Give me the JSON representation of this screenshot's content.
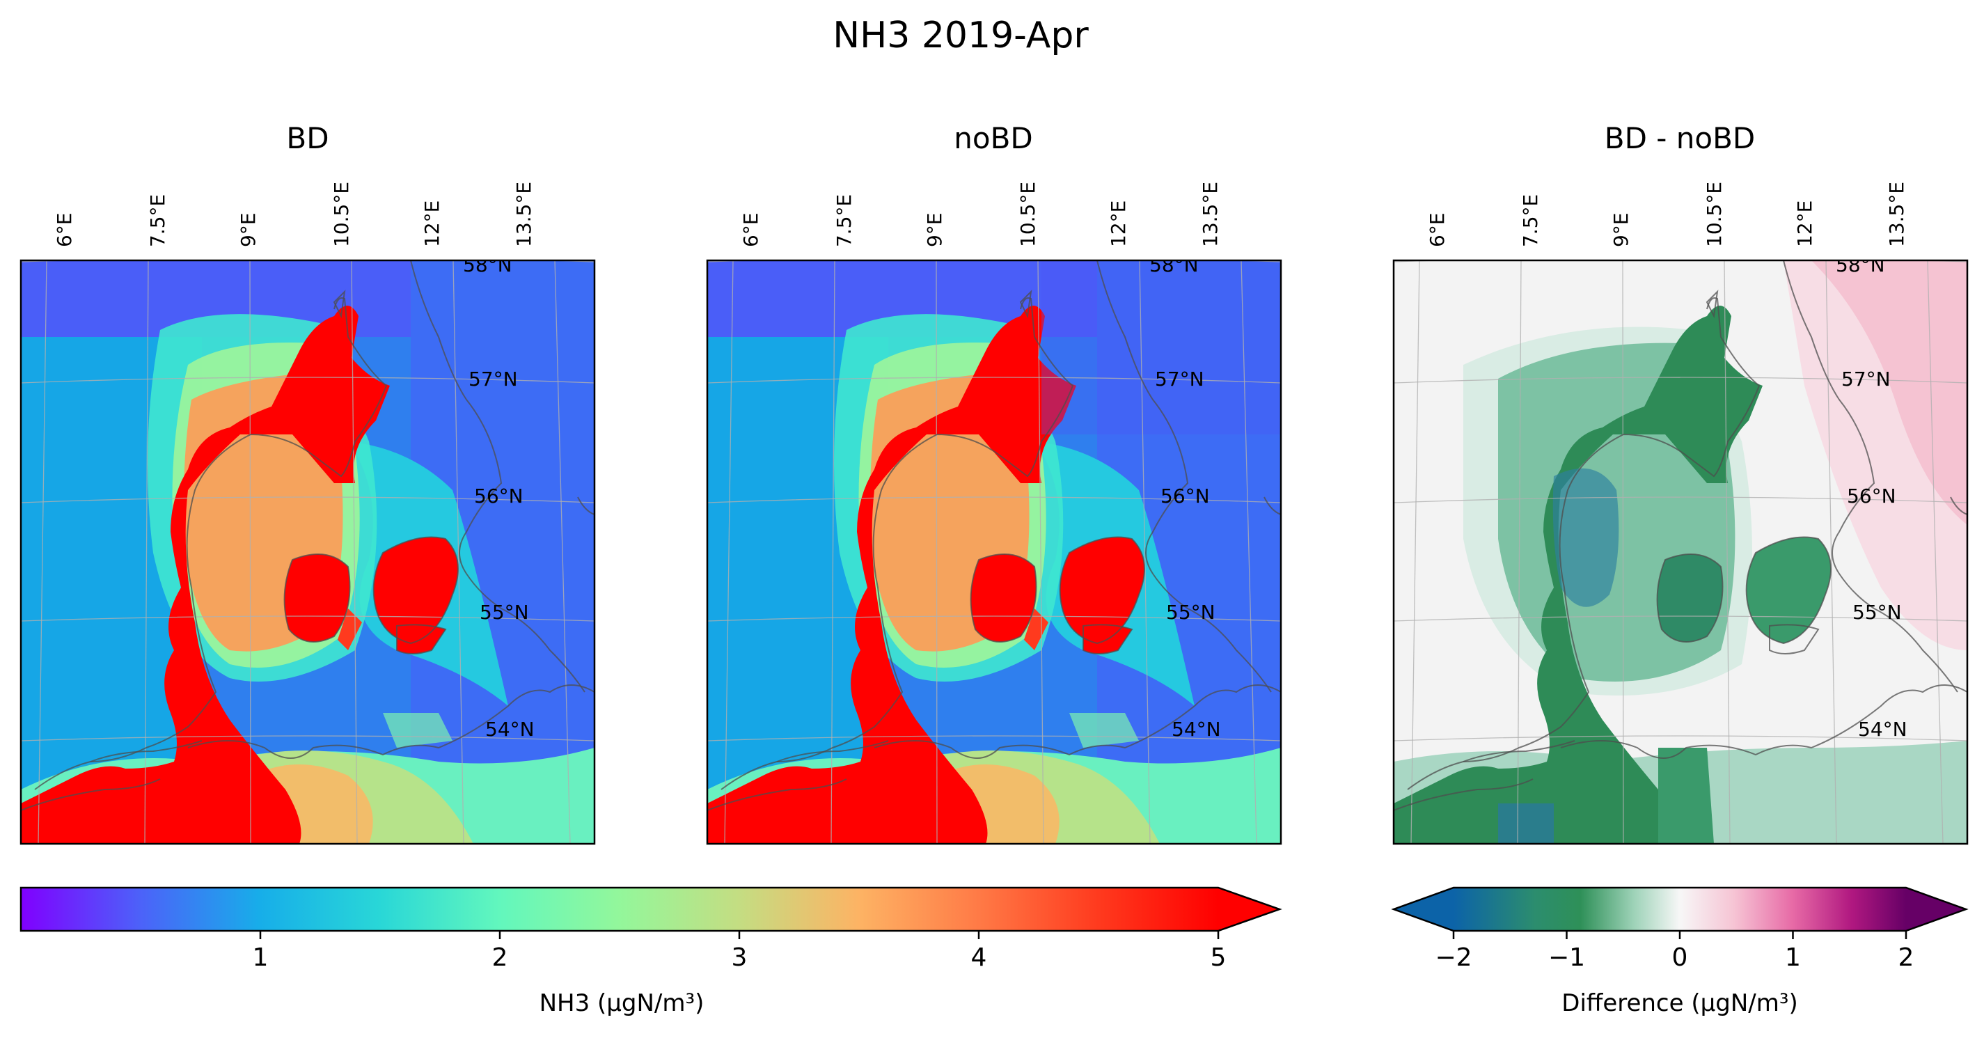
{
  "figure_title": "NH3 2019-Apr",
  "chart_data": [
    {
      "type": "heatmap",
      "title": "BD",
      "variable": "NH3",
      "units": "µgN/m³",
      "lon_ticks": [
        "6°E",
        "7.5°E",
        "9°E",
        "10.5°E",
        "12°E",
        "13.5°E"
      ],
      "lat_ticks": [
        "58°N",
        "57°N",
        "56°N",
        "55°N",
        "54°N"
      ],
      "grid": true,
      "value_summary": {
        "land_saturated": 5,
        "open_sea_min": 0.5,
        "southern_sea": 2.5
      }
    },
    {
      "type": "heatmap",
      "title": "noBD",
      "variable": "NH3",
      "units": "µgN/m³",
      "lon_ticks": [
        "6°E",
        "7.5°E",
        "9°E",
        "10.5°E",
        "12°E",
        "13.5°E"
      ],
      "lat_ticks": [
        "58°N",
        "57°N",
        "56°N",
        "55°N",
        "54°N"
      ],
      "grid": true,
      "value_summary": {
        "land_saturated": 5,
        "open_sea_min": 0.4,
        "southern_sea": 2.7
      }
    },
    {
      "type": "heatmap",
      "title": "BD - noBD",
      "variable": "Difference",
      "units": "µgN/m³",
      "lon_ticks": [
        "6°E",
        "7.5°E",
        "9°E",
        "10.5°E",
        "12°E",
        "13.5°E"
      ],
      "lat_ticks": [
        "58°N",
        "57°N",
        "56°N",
        "55°N",
        "54°N"
      ],
      "grid": true,
      "value_summary": {
        "land_min": -1.5,
        "sea_west": -0.05,
        "northeast_max": 0.6
      }
    }
  ],
  "colorbars": {
    "main": {
      "label": "NH3 (µgN/m³)",
      "ticks": [
        "1",
        "2",
        "3",
        "4",
        "5"
      ],
      "range": [
        0,
        5
      ],
      "extend": "max",
      "cmap": "rainbow"
    },
    "diff": {
      "label": "Difference (µgN/m³)",
      "ticks": [
        "−2",
        "−1",
        "0",
        "1",
        "2"
      ],
      "range": [
        -2,
        2
      ],
      "extend": "both",
      "cmap": "diverging blue-green-white-pink-purple"
    }
  },
  "colors": {
    "land_red": "#ff0000",
    "sea_blue": "#3a7ff0",
    "diff_green": "#2e8b57",
    "diff_pink": "#f4b6c8"
  }
}
